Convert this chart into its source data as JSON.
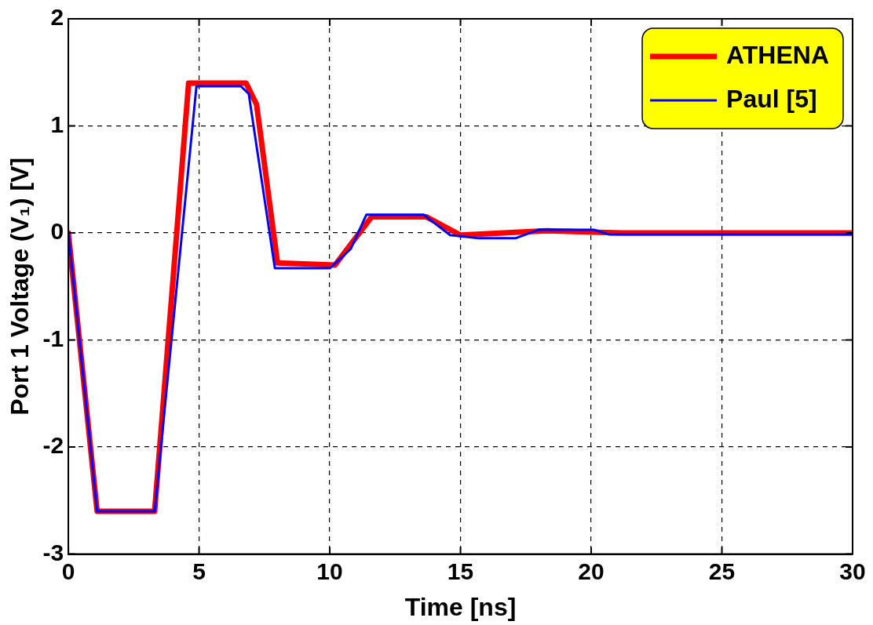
{
  "chart_data": {
    "type": "line",
    "xlabel": "Time [ns]",
    "ylabel": "Port 1 Voltage (V₁) [V]",
    "xlim": [
      0,
      30
    ],
    "xticks": [
      0,
      5,
      10,
      15,
      20,
      25,
      30
    ],
    "ylim": [
      -3,
      2
    ],
    "yticks": [
      -3,
      -2,
      -1,
      0,
      1,
      2
    ],
    "grid": true,
    "legend": "top right",
    "marker": "none",
    "line_style": "solid",
    "series": [
      {
        "name": "ATHENA",
        "color": "#ff0000",
        "x": [
          0,
          1.1,
          3.3,
          4.6,
          6.8,
          7.2,
          8.0,
          10.2,
          11.6,
          13.7,
          15.0,
          18.3,
          21.2,
          30
        ],
        "values": [
          0,
          -2.6,
          -2.6,
          1.4,
          1.4,
          1.2,
          -0.28,
          -0.3,
          0.15,
          0.15,
          -0.02,
          0.02,
          0.0,
          0.0
        ]
      },
      {
        "name": "Paul [5]",
        "color": "#0000ff",
        "x": [
          0,
          1.1,
          3.3,
          4.9,
          6.6,
          6.9,
          7.9,
          10.0,
          10.8,
          11.4,
          13.6,
          14.6,
          15.7,
          17.1,
          18.0,
          20.1,
          20.7,
          30
        ],
        "values": [
          0,
          -2.6,
          -2.6,
          1.37,
          1.37,
          1.3,
          -0.33,
          -0.33,
          -0.15,
          0.17,
          0.17,
          -0.02,
          -0.05,
          -0.05,
          0.03,
          0.03,
          -0.015,
          -0.015
        ]
      }
    ]
  }
}
